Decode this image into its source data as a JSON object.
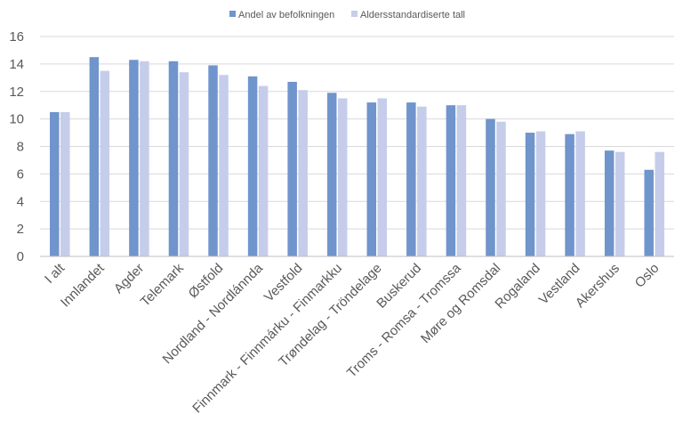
{
  "chart_data": {
    "type": "bar",
    "title": "",
    "xlabel": "",
    "ylabel": "",
    "ylim": [
      0,
      16
    ],
    "yticks": [
      0,
      2,
      4,
      6,
      8,
      10,
      12,
      14,
      16
    ],
    "grid": true,
    "legend_position": "top",
    "categories": [
      "I alt",
      "Innlandet",
      "Agder",
      "Telemark",
      "Østfold",
      "Nordland - Nordlánnda",
      "Vestfold",
      "Finnmark - Finnmárku - Finmarkku",
      "Trøndelag - Tröndelage",
      "Buskerud",
      "Troms - Romsa - Tromssa",
      "Møre og Romsdal",
      "Rogaland",
      "Vestland",
      "Akershus",
      "Oslo"
    ],
    "series": [
      {
        "name": "Andel av befolkningen",
        "color": "#7094cc",
        "values": [
          10.5,
          14.5,
          14.3,
          14.2,
          13.9,
          13.1,
          12.7,
          11.9,
          11.2,
          11.2,
          11.0,
          10.0,
          9.0,
          8.9,
          7.7,
          6.3
        ]
      },
      {
        "name": "Aldersstandardiserte tall",
        "color": "#c5cdea",
        "values": [
          10.5,
          13.5,
          14.2,
          13.4,
          13.2,
          12.4,
          12.1,
          11.5,
          11.5,
          10.9,
          11.0,
          9.8,
          9.1,
          9.1,
          7.6,
          7.6
        ]
      }
    ]
  }
}
